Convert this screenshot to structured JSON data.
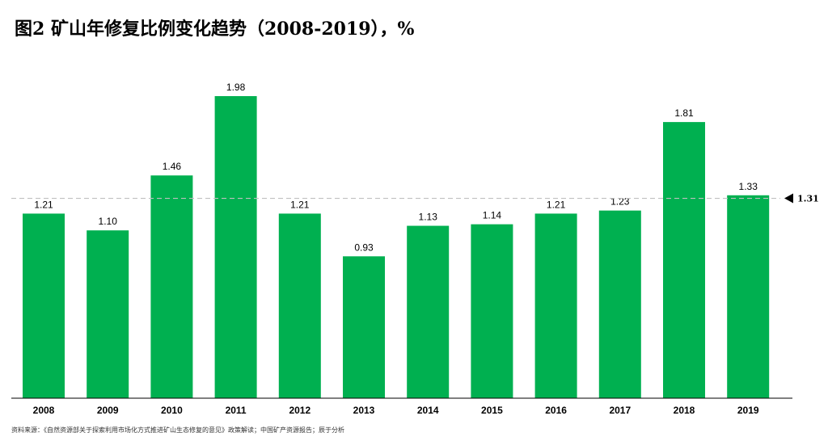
{
  "title": "图2 矿山年修复比例变化趋势（2008-2019），%",
  "source": "资料来源：《自然资源部关于探索利用市场化方式推进矿山生态修复的意见》政策解读；中国矿产资源报告；辰于分析",
  "chart_data": {
    "type": "bar",
    "categories": [
      "2008",
      "2009",
      "2010",
      "2011",
      "2012",
      "2013",
      "2014",
      "2015",
      "2016",
      "2017",
      "2018",
      "2019"
    ],
    "values": [
      1.21,
      1.1,
      1.46,
      1.98,
      1.21,
      0.93,
      1.13,
      1.14,
      1.21,
      1.23,
      1.81,
      1.33
    ],
    "value_labels": [
      "1.21",
      "1.10",
      "1.46",
      "1.98",
      "1.21",
      "0.93",
      "1.13",
      "1.14",
      "1.21",
      "1.23",
      "1.81",
      "1.33"
    ],
    "reference_line": {
      "value": 1.31,
      "label": "1.31",
      "style": "dashed"
    },
    "ylim": [
      0,
      2.1
    ],
    "bar_color": "#00b050",
    "grid": false,
    "legend": "none"
  }
}
